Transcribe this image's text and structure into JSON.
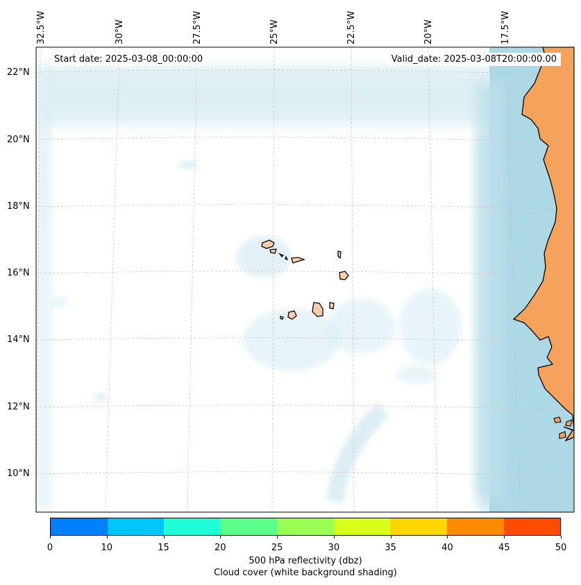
{
  "map": {
    "start_date_text": "Start date: 2025-03-08_00:00:00",
    "valid_date_text": "Valid_date: 2025-03-08T20:00:00.00",
    "lon_labels": [
      "32.5°W",
      "30°W",
      "27.5°W",
      "25°W",
      "22.5°W",
      "20°W",
      "17.5°W"
    ],
    "lat_labels": [
      "22°N",
      "20°N",
      "18°N",
      "16°N",
      "14°N",
      "12°N",
      "10°N"
    ],
    "land_color": "#f5a25d",
    "cloud_color": "#add8e6",
    "coast_color": "#000000"
  },
  "colorbar": {
    "title": "500 hPa reflectivity (dbz)",
    "subtitle": "Cloud cover (white background shading)",
    "ticks": [
      "0",
      "10",
      "15",
      "20",
      "25",
      "30",
      "35",
      "40",
      "45",
      "50"
    ],
    "colors": [
      "#0080ff",
      "#00c6ff",
      "#1fffd8",
      "#5cff8c",
      "#9aff52",
      "#d8ff1a",
      "#ffd700",
      "#ff8c00",
      "#ff4c00"
    ]
  }
}
